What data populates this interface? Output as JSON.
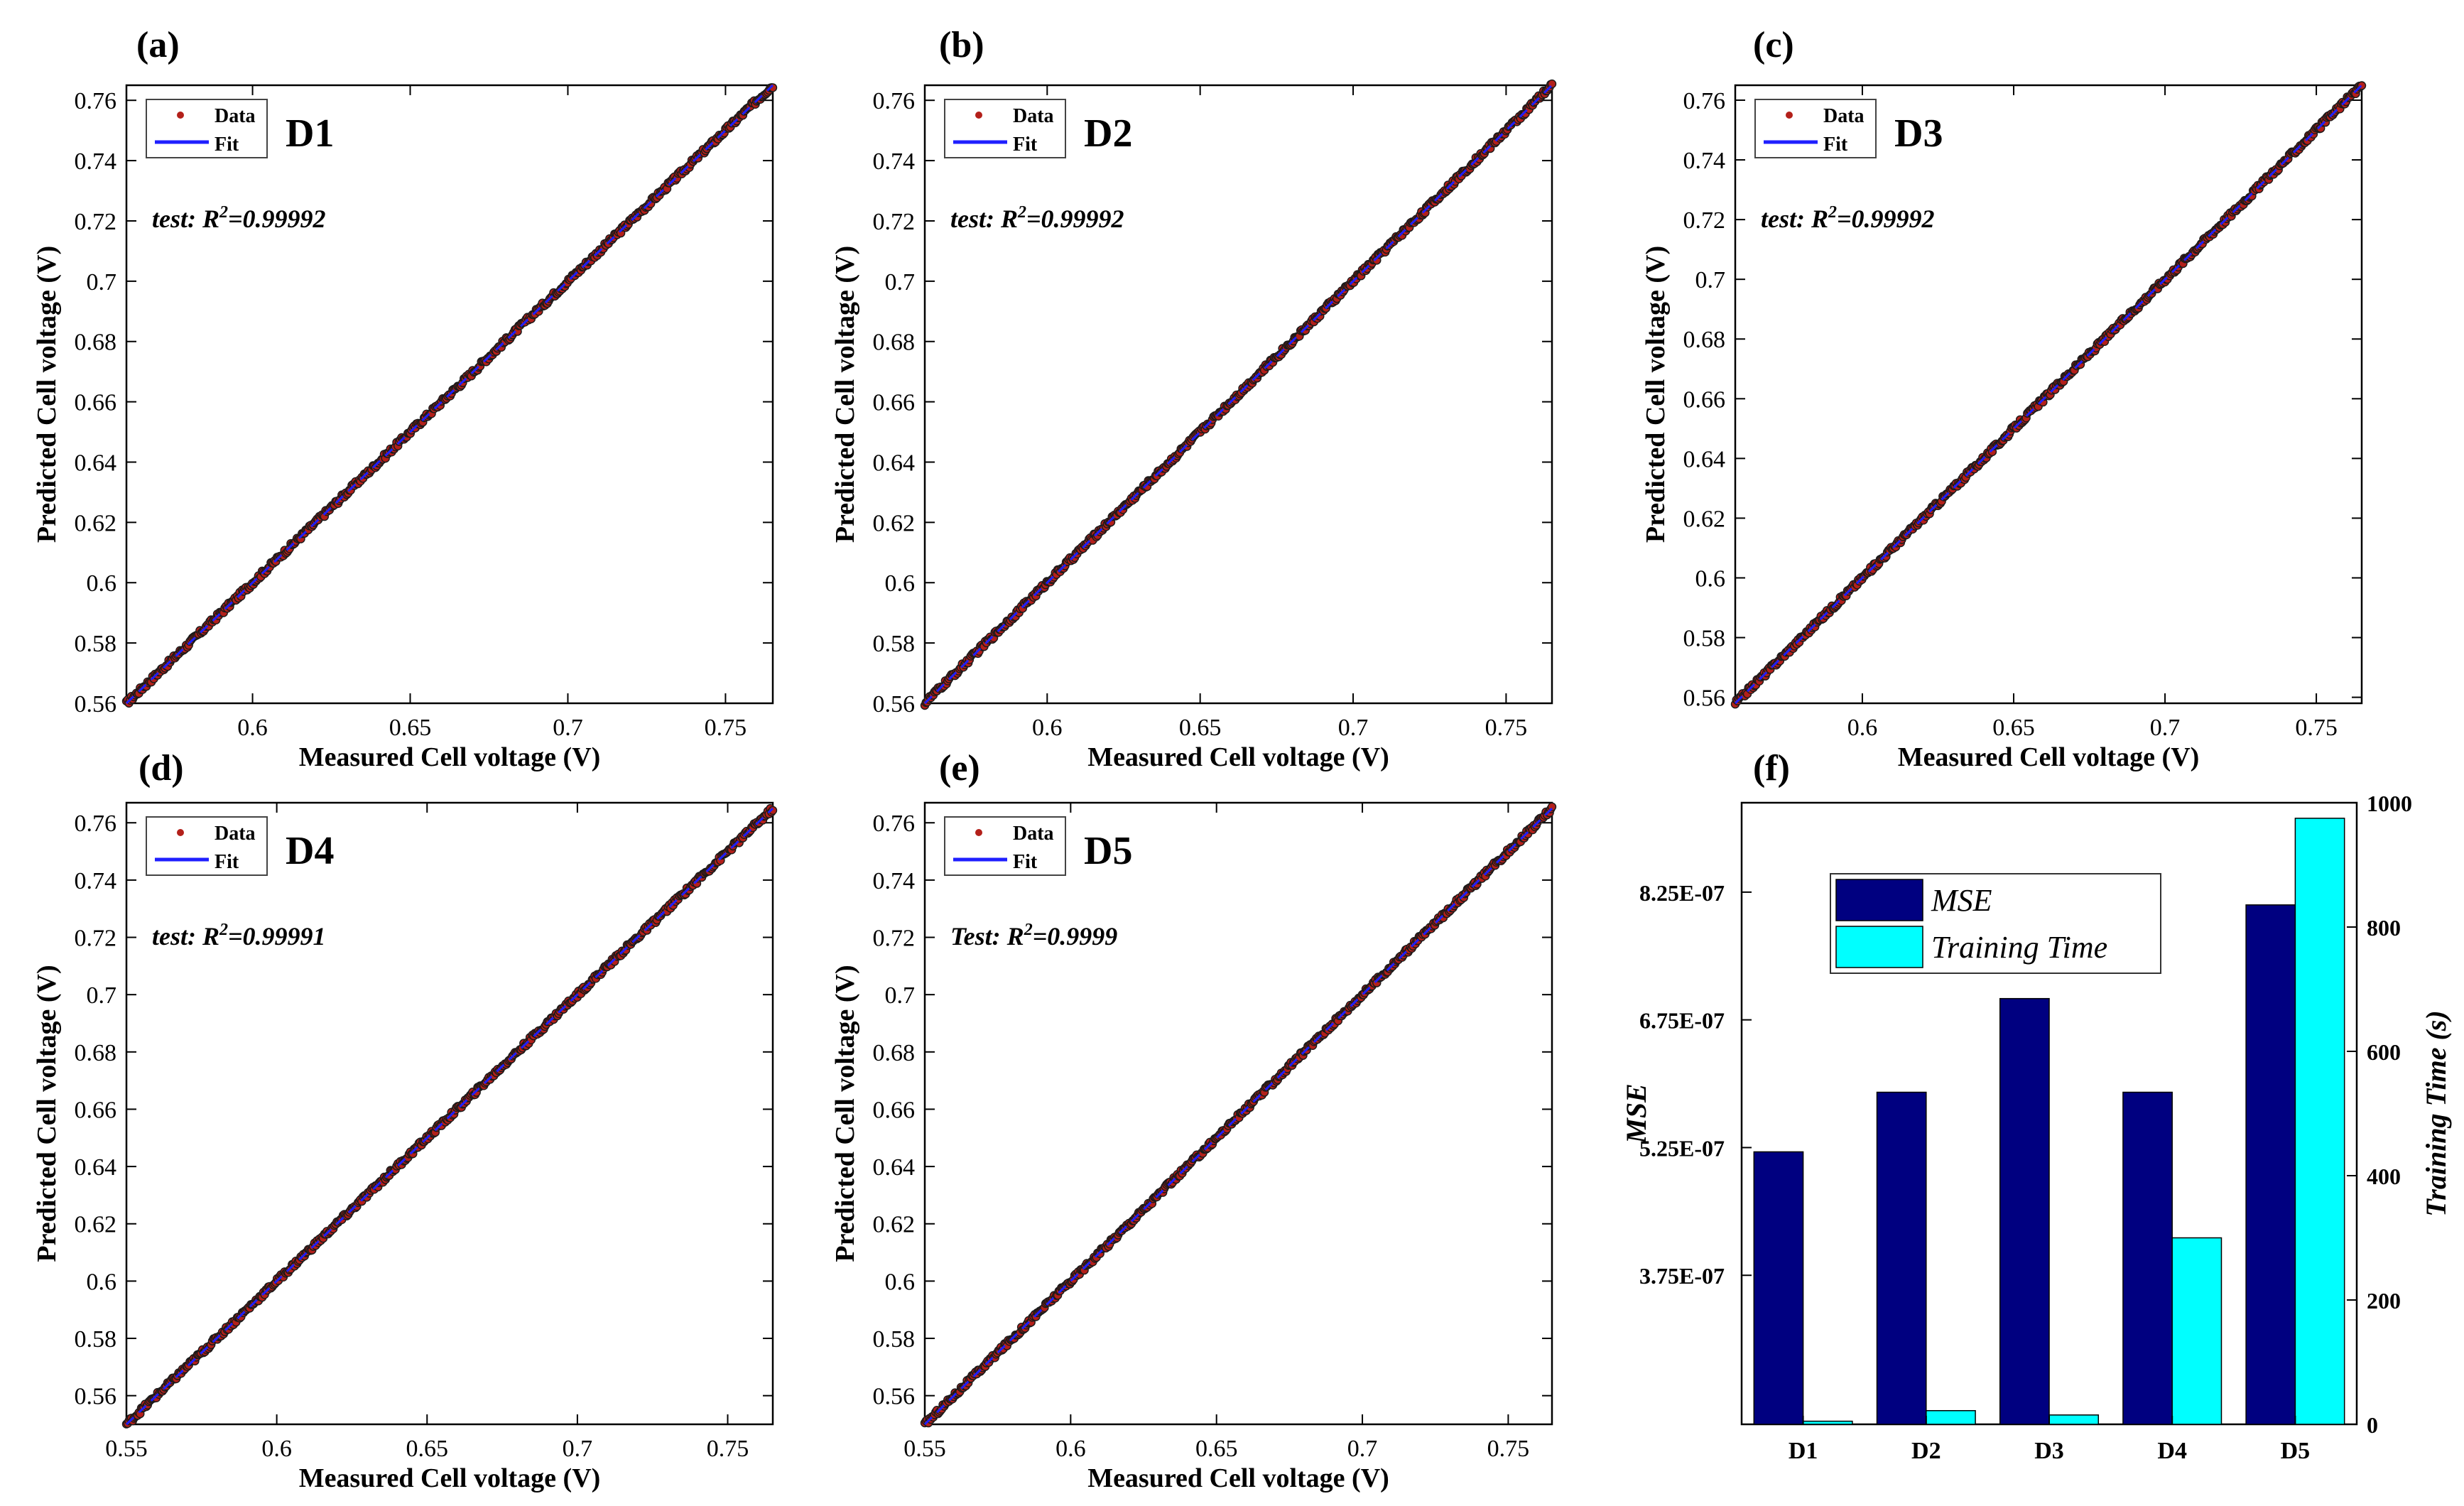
{
  "figure": {
    "colors": {
      "axis": "#000000",
      "data_marker": "#b3201a",
      "data_edge": "#1a1a1a",
      "fit_line": "#1f1fff",
      "bar_mse": "#000080",
      "bar_time": "#00ffff"
    }
  },
  "chart_data": [
    {
      "panel": "(a)",
      "type": "scatter",
      "dataset": "D1",
      "xlabel": "Measured Cell voltage (V)",
      "ylabel": "Predicted Cell voltage (V)",
      "xlim": [
        0.56,
        0.765
      ],
      "ylim": [
        0.56,
        0.765
      ],
      "xticks": [
        0.6,
        0.65,
        0.7,
        0.75
      ],
      "xtick_labels": [
        "0.6",
        "0.65",
        "0.7",
        "0.75"
      ],
      "yticks": [
        0.56,
        0.58,
        0.6,
        0.62,
        0.64,
        0.66,
        0.68,
        0.7,
        0.72,
        0.74,
        0.76
      ],
      "ytick_labels": [
        "0.56",
        "0.58",
        "0.6",
        "0.62",
        "0.64",
        "0.66",
        "0.68",
        "0.7",
        "0.72",
        "0.74",
        "0.76"
      ],
      "legend": [
        "Data",
        "Fit"
      ],
      "legend_position": "top-left",
      "annotation_prefix": "test: ",
      "annotation_r": "R",
      "annotation_exp": "2",
      "annotation_value": "=0.99992",
      "r2": 0.99992,
      "fit": {
        "x": [
          0.56,
          0.765
        ],
        "y": [
          0.56,
          0.765
        ]
      }
    },
    {
      "panel": "(b)",
      "type": "scatter",
      "dataset": "D2",
      "xlabel": "Measured Cell voltage (V)",
      "ylabel": "Predicted Cell voltage (V)",
      "xlim": [
        0.56,
        0.765
      ],
      "ylim": [
        0.56,
        0.765
      ],
      "xticks": [
        0.6,
        0.65,
        0.7,
        0.75
      ],
      "xtick_labels": [
        "0.6",
        "0.65",
        "0.7",
        "0.75"
      ],
      "yticks": [
        0.56,
        0.58,
        0.6,
        0.62,
        0.64,
        0.66,
        0.68,
        0.7,
        0.72,
        0.74,
        0.76
      ],
      "ytick_labels": [
        "0.56",
        "0.58",
        "0.6",
        "0.62",
        "0.64",
        "0.66",
        "0.68",
        "0.7",
        "0.72",
        "0.74",
        "0.76"
      ],
      "legend": [
        "Data",
        "Fit"
      ],
      "legend_position": "top-left",
      "annotation_prefix": "test: ",
      "annotation_r": "R",
      "annotation_exp": "2",
      "annotation_value": "=0.99992",
      "r2": 0.99992,
      "fit": {
        "x": [
          0.56,
          0.765
        ],
        "y": [
          0.56,
          0.765
        ]
      }
    },
    {
      "panel": "(c)",
      "type": "scatter",
      "dataset": "D3",
      "xlabel": "Measured Cell voltage (V)",
      "ylabel": "Predicted Cell voltage (V)",
      "xlim": [
        0.558,
        0.765
      ],
      "ylim": [
        0.558,
        0.765
      ],
      "xticks": [
        0.6,
        0.65,
        0.7,
        0.75
      ],
      "xtick_labels": [
        "0.6",
        "0.65",
        "0.7",
        "0.75"
      ],
      "yticks": [
        0.56,
        0.58,
        0.6,
        0.62,
        0.64,
        0.66,
        0.68,
        0.7,
        0.72,
        0.74,
        0.76
      ],
      "ytick_labels": [
        "0.56",
        "0.58",
        "0.6",
        "0.62",
        "0.64",
        "0.66",
        "0.68",
        "0.7",
        "0.72",
        "0.74",
        "0.76"
      ],
      "legend": [
        "Data",
        "Fit"
      ],
      "legend_position": "top-left",
      "annotation_prefix": "test: ",
      "annotation_r": "R",
      "annotation_exp": "2",
      "annotation_value": "=0.99992",
      "r2": 0.99992,
      "fit": {
        "x": [
          0.558,
          0.765
        ],
        "y": [
          0.558,
          0.765
        ]
      }
    },
    {
      "panel": "(d)",
      "type": "scatter",
      "dataset": "D4",
      "xlabel": "Measured Cell voltage (V)",
      "ylabel": "Predicted Cell voltage (V)",
      "xlim": [
        0.55,
        0.765
      ],
      "ylim": [
        0.55,
        0.767
      ],
      "xticks": [
        0.55,
        0.6,
        0.65,
        0.7,
        0.75
      ],
      "xtick_labels": [
        "0.55",
        "0.6",
        "0.65",
        "0.7",
        "0.75"
      ],
      "yticks": [
        0.56,
        0.58,
        0.6,
        0.62,
        0.64,
        0.66,
        0.68,
        0.7,
        0.72,
        0.74,
        0.76
      ],
      "ytick_labels": [
        "0.56",
        "0.58",
        "0.6",
        "0.62",
        "0.64",
        "0.66",
        "0.68",
        "0.7",
        "0.72",
        "0.74",
        "0.76"
      ],
      "legend": [
        "Data",
        "Fit"
      ],
      "legend_position": "top-left",
      "annotation_prefix": "test: ",
      "annotation_r": "R",
      "annotation_exp": "2",
      "annotation_value": "=0.99991",
      "r2": 0.99991,
      "fit": {
        "x": [
          0.55,
          0.765
        ],
        "y": [
          0.55,
          0.765
        ]
      }
    },
    {
      "panel": "(e)",
      "type": "scatter",
      "dataset": "D5",
      "xlabel": "Measured Cell voltage (V)",
      "ylabel": "Predicted Cell voltage (V)",
      "xlim": [
        0.55,
        0.765
      ],
      "ylim": [
        0.55,
        0.767
      ],
      "xticks": [
        0.55,
        0.6,
        0.65,
        0.7,
        0.75
      ],
      "xtick_labels": [
        "0.55",
        "0.6",
        "0.65",
        "0.7",
        "0.75"
      ],
      "yticks": [
        0.56,
        0.58,
        0.6,
        0.62,
        0.64,
        0.66,
        0.68,
        0.7,
        0.72,
        0.74,
        0.76
      ],
      "ytick_labels": [
        "0.56",
        "0.58",
        "0.6",
        "0.62",
        "0.64",
        "0.66",
        "0.68",
        "0.7",
        "0.72",
        "0.74",
        "0.76"
      ],
      "legend": [
        "Data",
        "Fit"
      ],
      "legend_position": "top-left",
      "annotation_prefix": "Test: ",
      "annotation_r": "R",
      "annotation_exp": "2",
      "annotation_value": "=0.9999",
      "r2": 0.9999,
      "fit": {
        "x": [
          0.55,
          0.765
        ],
        "y": [
          0.55,
          0.765
        ]
      }
    },
    {
      "panel": "(f)",
      "type": "bar",
      "categories": [
        "D1",
        "D2",
        "D3",
        "D4",
        "D5"
      ],
      "series": [
        {
          "name": "MSE",
          "axis": "left",
          "values": [
            5.2e-07,
            5.9e-07,
            7e-07,
            5.9e-07,
            8.1e-07
          ]
        },
        {
          "name": "Training Time",
          "axis": "right",
          "values": [
            5,
            22,
            15,
            300,
            975
          ]
        }
      ],
      "ylabel_left": "MSE",
      "ylabel_right": "Training Time (s)",
      "ylim_left": [
        2e-07,
        9.3e-07
      ],
      "ylim_right": [
        0,
        1000
      ],
      "yticks_left": [
        3.75e-07,
        5.25e-07,
        6.75e-07,
        8.25e-07
      ],
      "ytick_labels_left": [
        "3.75E-07",
        "5.25E-07",
        "6.75E-07",
        "8.25E-07"
      ],
      "yticks_right": [
        0,
        200,
        400,
        600,
        800,
        1000
      ],
      "ytick_labels_right": [
        "0",
        "200",
        "400",
        "600",
        "800",
        "1000"
      ],
      "legend": [
        "MSE",
        "Training Time"
      ],
      "legend_position": "top-left"
    }
  ]
}
